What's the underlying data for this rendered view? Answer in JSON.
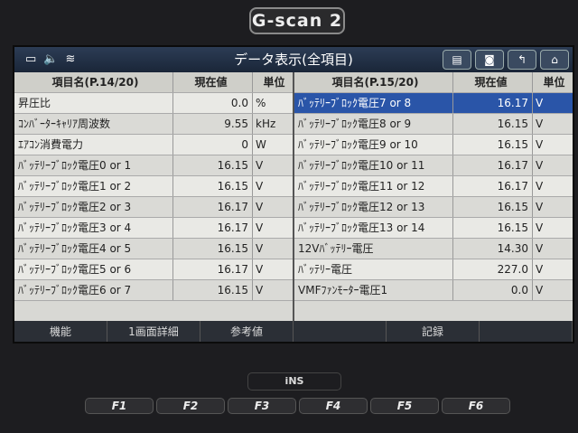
{
  "device": {
    "brand": "G-scan 2",
    "maker": "iNS",
    "fkeys": [
      "F1",
      "F2",
      "F3",
      "F4",
      "F5",
      "F6"
    ]
  },
  "titlebar": {
    "title": "データ表示(全項目)",
    "status_icons": [
      "battery-icon",
      "speaker-icon",
      "wifi-icon"
    ],
    "buttons": [
      "print-icon",
      "camera-icon",
      "back-icon",
      "home-icon"
    ]
  },
  "left": {
    "headers": {
      "name": "項目名(P.14/20)",
      "value": "現在値",
      "unit": "単位"
    },
    "rows": [
      {
        "name": "昇圧比",
        "value": "0.0",
        "unit": "%"
      },
      {
        "name": "ｺﾝﾊﾞｰﾀｰｷｬﾘｱ周波数",
        "value": "9.55",
        "unit": "kHz"
      },
      {
        "name": "ｴｱｺﾝ消費電力",
        "value": "0",
        "unit": "W"
      },
      {
        "name": "ﾊﾞｯﾃﾘｰﾌﾞﾛｯｸ電圧0 or 1",
        "value": "16.15",
        "unit": "V"
      },
      {
        "name": "ﾊﾞｯﾃﾘｰﾌﾞﾛｯｸ電圧1 or 2",
        "value": "16.15",
        "unit": "V"
      },
      {
        "name": "ﾊﾞｯﾃﾘｰﾌﾞﾛｯｸ電圧2 or 3",
        "value": "16.17",
        "unit": "V"
      },
      {
        "name": "ﾊﾞｯﾃﾘｰﾌﾞﾛｯｸ電圧3 or 4",
        "value": "16.17",
        "unit": "V"
      },
      {
        "name": "ﾊﾞｯﾃﾘｰﾌﾞﾛｯｸ電圧4 or 5",
        "value": "16.15",
        "unit": "V"
      },
      {
        "name": "ﾊﾞｯﾃﾘｰﾌﾞﾛｯｸ電圧5 or 6",
        "value": "16.17",
        "unit": "V"
      },
      {
        "name": "ﾊﾞｯﾃﾘｰﾌﾞﾛｯｸ電圧6 or 7",
        "value": "16.15",
        "unit": "V"
      }
    ]
  },
  "right": {
    "headers": {
      "name": "項目名(P.15/20)",
      "value": "現在値",
      "unit": "単位"
    },
    "rows": [
      {
        "name": "ﾊﾞｯﾃﾘｰﾌﾞﾛｯｸ電圧7 or 8",
        "value": "16.17",
        "unit": "V",
        "selected": true
      },
      {
        "name": "ﾊﾞｯﾃﾘｰﾌﾞﾛｯｸ電圧8 or 9",
        "value": "16.15",
        "unit": "V"
      },
      {
        "name": "ﾊﾞｯﾃﾘｰﾌﾞﾛｯｸ電圧9 or 10",
        "value": "16.15",
        "unit": "V"
      },
      {
        "name": "ﾊﾞｯﾃﾘｰﾌﾞﾛｯｸ電圧10 or 11",
        "value": "16.17",
        "unit": "V"
      },
      {
        "name": "ﾊﾞｯﾃﾘｰﾌﾞﾛｯｸ電圧11 or 12",
        "value": "16.17",
        "unit": "V"
      },
      {
        "name": "ﾊﾞｯﾃﾘｰﾌﾞﾛｯｸ電圧12 or 13",
        "value": "16.15",
        "unit": "V"
      },
      {
        "name": "ﾊﾞｯﾃﾘｰﾌﾞﾛｯｸ電圧13 or 14",
        "value": "16.15",
        "unit": "V"
      },
      {
        "name": "12Vﾊﾞｯﾃﾘｰ電圧",
        "value": "14.30",
        "unit": "V"
      },
      {
        "name": "ﾊﾞｯﾃﾘｰ電圧",
        "value": "227.0",
        "unit": "V"
      },
      {
        "name": "VMFﾌｧﾝﾓｰﾀｰ電圧1",
        "value": "0.0",
        "unit": "V"
      }
    ]
  },
  "bottombar": [
    "機能",
    "1画面詳細",
    "参考値",
    "",
    "記録",
    ""
  ],
  "colors": {
    "selected_row": "#2a55a8",
    "titlebar": "#1f2d42"
  }
}
